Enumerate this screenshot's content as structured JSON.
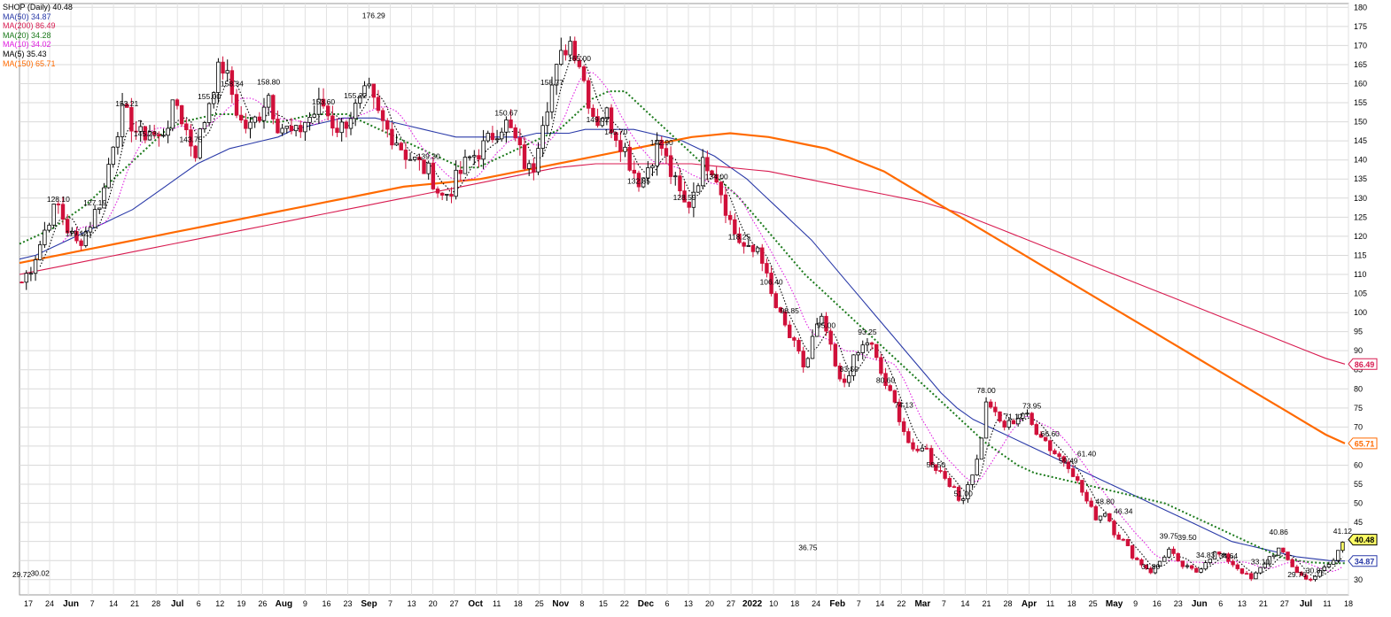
{
  "chart_data": {
    "type": "candlestick",
    "title": "SHOP (Daily) 40.48",
    "legend": [
      {
        "label": "MA(50) 34.87",
        "color": "#2a3aa8",
        "style": "solid"
      },
      {
        "label": "MA(200) 86.49",
        "color": "#d81b50",
        "style": "solid"
      },
      {
        "label": "MA(20) 34.28",
        "color": "#1b7a1b",
        "style": "dotted"
      },
      {
        "label": "MA(10) 34.02",
        "color": "#e01ee0",
        "style": "dotted"
      },
      {
        "label": "MA(5) 35.43",
        "color": "#000000",
        "style": "dotted"
      },
      {
        "label": "MA(150) 65.71",
        "color": "#ff6a00",
        "style": "solid"
      }
    ],
    "y_axis": {
      "ticks": [
        30,
        35,
        40,
        45,
        50,
        55,
        60,
        65,
        70,
        75,
        80,
        85,
        90,
        95,
        100,
        105,
        110,
        115,
        120,
        125,
        130,
        135,
        140,
        145,
        150,
        155,
        160,
        165,
        170,
        175,
        180
      ],
      "ylim": [
        26,
        181
      ],
      "side": "right"
    },
    "x_axis": {
      "tick_labels": [
        "17",
        "24",
        "Jun",
        "7",
        "14",
        "21",
        "28",
        "Jul",
        "6",
        "12",
        "19",
        "26",
        "Aug",
        "9",
        "16",
        "23",
        "Sep",
        "7",
        "13",
        "20",
        "27",
        "Oct",
        "11",
        "18",
        "25",
        "Nov",
        "8",
        "15",
        "22",
        "Dec",
        "6",
        "13",
        "20",
        "27",
        "2022",
        "10",
        "18",
        "24",
        "Feb",
        "7",
        "14",
        "22",
        "Mar",
        "7",
        "14",
        "21",
        "28",
        "Apr",
        "11",
        "18",
        "25",
        "May",
        "9",
        "16",
        "23",
        "Jun",
        "6",
        "13",
        "21",
        "27",
        "Jul",
        "11",
        "18"
      ]
    },
    "annotations": [
      {
        "text": "128.10",
        "value": 128.1
      },
      {
        "text": "118.25",
        "value": 118.25
      },
      {
        "text": "155.22",
        "value": 155.22
      },
      {
        "text": "142.90",
        "value": 142.9
      },
      {
        "text": "158.77",
        "value": 158.77
      },
      {
        "text": "155.00",
        "value": 155.0
      },
      {
        "text": "145.23",
        "value": 145.23
      },
      {
        "text": "165.00",
        "value": 165.0
      },
      {
        "text": "139.30",
        "value": 139.3
      },
      {
        "text": "149.02",
        "value": 149.02
      },
      {
        "text": "158.34",
        "value": 158.34
      },
      {
        "text": "143.75",
        "value": 143.75
      },
      {
        "text": "158.80",
        "value": 158.8
      },
      {
        "text": "128.59",
        "value": 128.59
      },
      {
        "text": "150.67",
        "value": 150.67
      },
      {
        "text": "132.85",
        "value": 132.85
      },
      {
        "text": "176.29",
        "value": 176.29
      },
      {
        "text": "153.21",
        "value": 153.21
      },
      {
        "text": "153.60",
        "value": 153.6
      },
      {
        "text": "134.00",
        "value": 134.0
      },
      {
        "text": "145.70",
        "value": 145.7
      },
      {
        "text": "127.19",
        "value": 127.19
      },
      {
        "text": "119.12",
        "value": 119.12
      },
      {
        "text": "106.40",
        "value": 106.4
      },
      {
        "text": "95.00",
        "value": 95.0
      },
      {
        "text": "98.85",
        "value": 98.85
      },
      {
        "text": "80.60",
        "value": 80.6
      },
      {
        "text": "93.25",
        "value": 93.25
      },
      {
        "text": "83.50",
        "value": 83.5
      },
      {
        "text": "71.12",
        "value": 71.12
      },
      {
        "text": "58.50",
        "value": 58.5
      },
      {
        "text": "59.49",
        "value": 59.49
      },
      {
        "text": "51.00",
        "value": 51.0
      },
      {
        "text": "78.00",
        "value": 78.0
      },
      {
        "text": "73.95",
        "value": 73.95
      },
      {
        "text": "74.13",
        "value": 74.13
      },
      {
        "text": "66.60",
        "value": 66.6
      },
      {
        "text": "61.40",
        "value": 61.4
      },
      {
        "text": "48.80",
        "value": 48.8
      },
      {
        "text": "46.34",
        "value": 46.34
      },
      {
        "text": "41.12",
        "value": 41.12
      },
      {
        "text": "40.86",
        "value": 40.86
      },
      {
        "text": "34.64",
        "value": 34.64
      },
      {
        "text": "30.81",
        "value": 30.81
      },
      {
        "text": "31.80",
        "value": 31.8
      },
      {
        "text": "39.75",
        "value": 39.75
      },
      {
        "text": "34.83",
        "value": 34.83
      },
      {
        "text": "33.10",
        "value": 33.1
      },
      {
        "text": "29.76",
        "value": 29.76
      },
      {
        "text": "39.50",
        "value": 39.5
      },
      {
        "text": "36.75",
        "value": 36.75
      },
      {
        "text": "29.72",
        "value": 29.72
      },
      {
        "text": "30.02",
        "value": 30.02
      }
    ],
    "last_value_tags": [
      {
        "text": "86.49",
        "value": 86.49,
        "color": "#d81b50"
      },
      {
        "text": "65.71",
        "value": 65.71,
        "color": "#ff6a00"
      },
      {
        "text": "40.48",
        "value": 40.48,
        "color": "#000000",
        "fill": "#ffff66"
      },
      {
        "text": "34.87",
        "value": 34.87,
        "color": "#2a3aa8"
      }
    ],
    "series": [
      {
        "name": "SHOP",
        "kind": "close_path",
        "values": [
          108,
          112,
          118,
          125,
          128,
          122,
          118,
          121,
          126,
          132,
          145,
          152,
          150,
          146,
          148,
          145,
          150,
          155,
          148,
          142,
          150,
          160,
          165,
          158,
          150,
          148,
          152,
          158,
          150,
          148,
          146,
          150,
          152,
          155,
          150,
          148,
          152,
          154,
          158,
          152,
          148,
          146,
          142,
          140,
          138,
          136,
          130,
          132,
          136,
          140,
          142,
          144,
          148,
          150,
          146,
          140,
          136,
          150,
          158,
          165,
          172,
          168,
          158,
          150,
          153,
          148,
          144,
          138,
          134,
          140,
          145,
          138,
          132,
          127,
          134,
          140,
          138,
          130,
          122,
          118,
          115,
          118,
          106,
          100,
          95,
          90,
          85,
          95,
          98,
          88,
          80,
          86,
          90,
          93,
          86,
          80,
          75,
          68,
          62,
          66,
          60,
          58,
          55,
          50,
          56,
          62,
          78,
          72,
          70,
          72,
          74,
          70,
          68,
          64,
          62,
          60,
          55,
          50,
          46,
          48,
          42,
          40,
          36,
          34,
          32,
          35,
          38,
          34,
          33,
          32,
          35,
          37,
          36,
          34,
          32,
          30,
          33,
          36,
          38,
          35,
          32,
          30,
          31,
          33,
          35,
          40
        ]
      },
      {
        "name": "MA(50)",
        "values": [
          114,
          115,
          117,
          119,
          121,
          123,
          125,
          127,
          130,
          133,
          136,
          139,
          141,
          143,
          144,
          145,
          146,
          148,
          149,
          150,
          151,
          151,
          151,
          150,
          149,
          148,
          147,
          146,
          146,
          146,
          146,
          146,
          147,
          147,
          147,
          148,
          148,
          148,
          148,
          147,
          146,
          145,
          143,
          141,
          138,
          135,
          131,
          127,
          123,
          119,
          114,
          109,
          104,
          99,
          94,
          89,
          84,
          79,
          75,
          72,
          70,
          68,
          66,
          64,
          62,
          60,
          58,
          56,
          54,
          52,
          50,
          48,
          46,
          44,
          42,
          40,
          39,
          38,
          37,
          36,
          35.5,
          35,
          34.87
        ]
      },
      {
        "name": "MA(200)",
        "values": [
          110,
          111,
          112,
          113,
          114,
          115,
          116,
          117,
          118,
          119,
          120,
          121,
          122,
          123,
          124,
          125,
          126,
          127,
          128,
          129,
          130,
          131,
          132,
          133,
          134,
          135,
          136,
          137,
          138,
          138.5,
          139,
          139,
          139,
          139,
          139,
          139,
          138.5,
          138,
          137.5,
          137,
          136,
          135,
          134,
          133,
          132,
          131,
          130,
          129,
          127.5,
          126,
          124,
          122,
          120,
          118,
          116,
          114,
          112,
          110,
          108,
          106,
          104,
          102,
          100,
          98,
          96,
          94,
          92,
          90,
          88,
          86.49
        ]
      },
      {
        "name": "MA(150)",
        "values": [
          113,
          114,
          115,
          116,
          117,
          118,
          119,
          120,
          121,
          122,
          123,
          124,
          125,
          126,
          127,
          128,
          129,
          130,
          131,
          132,
          133,
          133.5,
          134,
          134.5,
          135,
          136,
          137,
          138,
          139,
          140,
          141,
          142,
          143,
          144,
          145,
          146,
          146.5,
          147,
          146.5,
          146,
          145,
          144,
          143,
          141,
          139,
          137,
          134,
          131,
          128,
          125,
          122,
          119,
          116,
          113,
          110,
          107,
          104,
          101,
          98,
          95,
          92,
          89,
          86,
          83,
          80,
          77,
          74,
          71,
          68,
          65.71
        ]
      },
      {
        "name": "MA(20)",
        "values": [
          118,
          120,
          122,
          125,
          128,
          132,
          136,
          140,
          144,
          148,
          150,
          151,
          152,
          152,
          151,
          150,
          150,
          151,
          152,
          152,
          152,
          150,
          148,
          146,
          144,
          142,
          140,
          138,
          138,
          140,
          142,
          144,
          146,
          148,
          152,
          156,
          158,
          158,
          154,
          150,
          146,
          142,
          138,
          134,
          130,
          125,
          120,
          115,
          110,
          106,
          102,
          98,
          94,
          90,
          86,
          82,
          78,
          74,
          70,
          66,
          63,
          60,
          58,
          57,
          56,
          55,
          54,
          53,
          52,
          51,
          50,
          48,
          46,
          44,
          42,
          40,
          38,
          36,
          35,
          34.5,
          34.3,
          34.28
        ]
      }
    ]
  }
}
